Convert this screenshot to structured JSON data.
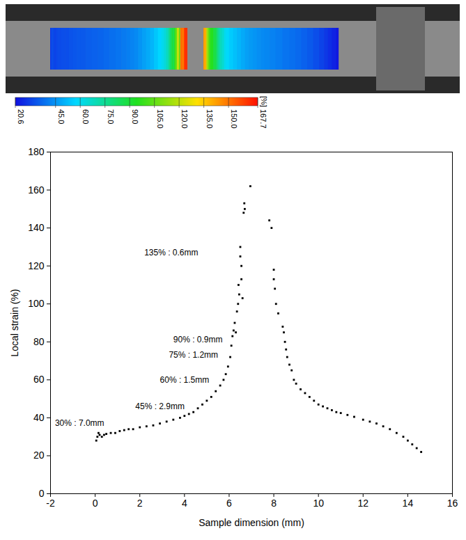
{
  "chart_data": {
    "type": "scatter",
    "x_label": "Sample dimension (mm)",
    "y_label": "Local strain (%)",
    "xlim": [
      -2,
      16
    ],
    "xticks": [
      -2,
      0,
      2,
      4,
      6,
      8,
      10,
      12,
      14,
      16
    ],
    "ylim": [
      0,
      180
    ],
    "yticks": [
      0,
      20,
      40,
      60,
      80,
      100,
      120,
      140,
      160,
      180
    ],
    "marker": "square",
    "color": "#000000",
    "x": [
      0.05,
      0.1,
      0.15,
      0.2,
      0.3,
      0.4,
      0.5,
      0.7,
      0.9,
      1.1,
      1.3,
      1.5,
      1.7,
      2.0,
      2.3,
      2.6,
      2.9,
      3.2,
      3.5,
      3.8,
      4.0,
      4.2,
      4.4,
      4.6,
      4.8,
      5.0,
      5.2,
      5.4,
      5.6,
      5.75,
      5.85,
      5.95,
      6.05,
      6.1,
      6.15,
      6.2,
      6.25,
      6.3,
      6.35,
      6.4,
      6.42,
      6.45,
      6.5,
      6.5,
      6.55,
      6.55,
      6.6,
      6.65,
      6.68,
      6.7,
      6.95,
      7.8,
      7.9,
      8.0,
      8.0,
      8.05,
      8.1,
      8.2,
      8.4,
      8.45,
      8.5,
      8.55,
      8.6,
      8.7,
      8.8,
      8.9,
      9.0,
      9.2,
      9.4,
      9.6,
      9.8,
      10.0,
      10.2,
      10.4,
      10.6,
      10.8,
      11.0,
      11.3,
      11.6,
      12.0,
      12.3,
      12.6,
      12.9,
      13.2,
      13.5,
      13.8,
      14.0,
      14.2,
      14.4,
      14.6
    ],
    "values": [
      28,
      30,
      32,
      31,
      30,
      31,
      31.5,
      32,
      32,
      33,
      33.5,
      34,
      34,
      35,
      35.5,
      36,
      37,
      38,
      39,
      40,
      41,
      42,
      43,
      45,
      47,
      49,
      51,
      54,
      57,
      60,
      63,
      67,
      72,
      78,
      83,
      86,
      90,
      85,
      96,
      100,
      110,
      105,
      125,
      130,
      120,
      113,
      103,
      148,
      153,
      150,
      162,
      144,
      140,
      118,
      113,
      108,
      100,
      95,
      88,
      85,
      80,
      76,
      72,
      68,
      65,
      60,
      58,
      55,
      53,
      51,
      49,
      47,
      46,
      45,
      44,
      43,
      42.5,
      41.5,
      40.5,
      39,
      38,
      37,
      35.5,
      34,
      32,
      30,
      28,
      26,
      24,
      22
    ],
    "annotations": [
      {
        "text": "30% : 7.0mm",
        "x": -1.8,
        "y": 37
      },
      {
        "text": "45% : 2.9mm",
        "x": 1.8,
        "y": 46
      },
      {
        "text": "60% : 1.5mm",
        "x": 2.9,
        "y": 60
      },
      {
        "text": "75% : 1.2mm",
        "x": 3.3,
        "y": 73
      },
      {
        "text": "90% : 0.9mm",
        "x": 3.5,
        "y": 81
      },
      {
        "text": "135% : 0.6mm",
        "x": 2.2,
        "y": 127
      }
    ],
    "colorbar": {
      "label": "[%]",
      "range": [
        20.6,
        167.7
      ],
      "ticks": [
        20.6,
        {
          "value": 45,
          "label": "45.0"
        },
        {
          "value": 60,
          "label": "60.0"
        },
        {
          "value": 75,
          "label": "75.0"
        },
        {
          "value": 90,
          "label": "90.0"
        },
        {
          "value": 105,
          "label": "105.0"
        },
        {
          "value": 120,
          "label": "120.0"
        },
        {
          "value": 135,
          "label": "135.0"
        },
        {
          "value": 150,
          "label": "150.0"
        },
        167.7
      ],
      "colors": [
        "#1010e0",
        "#00d8ff",
        "#20e020",
        "#ffe000",
        "#ff1000"
      ]
    }
  }
}
